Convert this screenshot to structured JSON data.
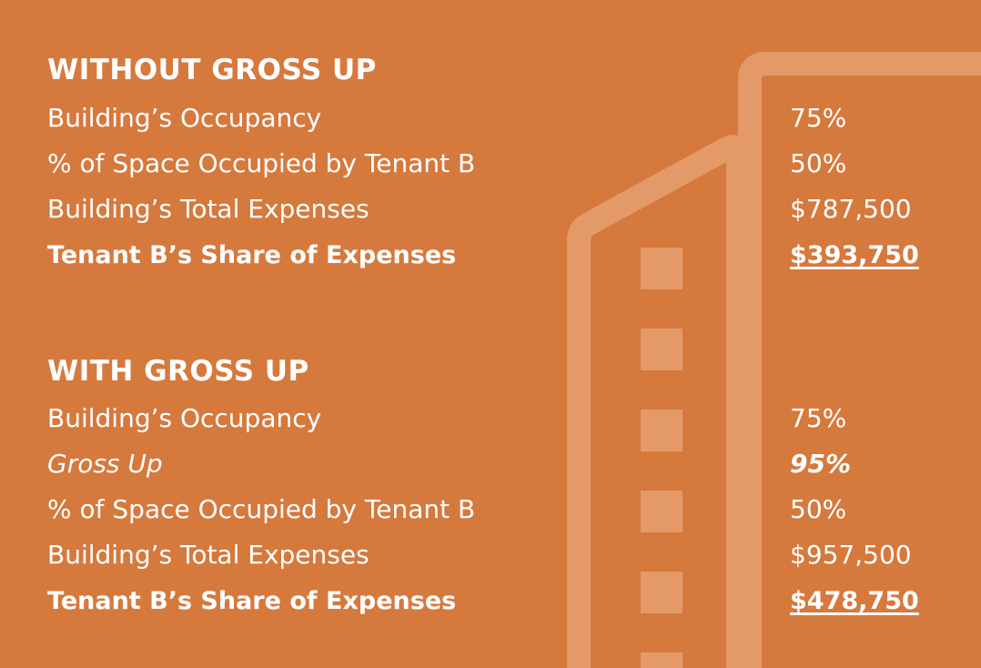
{
  "colors": {
    "background": "#d6793d",
    "building_accent": "#e39a68",
    "text": "#ffffff"
  },
  "illustration": {
    "icon": "building-outline-icon"
  },
  "without_gross_up": {
    "heading": "WITHOUT GROSS UP",
    "rows": [
      {
        "label": "Building’s Occupancy",
        "value": "75%"
      },
      {
        "label": "% of Space Occupied by Tenant B",
        "value": "50%"
      },
      {
        "label": "Building’s Total Expenses",
        "value": "$787,500"
      },
      {
        "label": "Tenant B’s Share of Expenses",
        "value": "$393,750"
      }
    ]
  },
  "with_gross_up": {
    "heading": "WITH GROSS UP",
    "rows": [
      {
        "label": "Building’s Occupancy",
        "value": "75%"
      },
      {
        "label": "Gross Up",
        "value": "95%"
      },
      {
        "label": "% of Space Occupied by Tenant B",
        "value": "50%"
      },
      {
        "label": "Building’s Total Expenses",
        "value": "$957,500"
      },
      {
        "label": "Tenant B’s Share of Expenses",
        "value": "$478,750"
      }
    ]
  }
}
